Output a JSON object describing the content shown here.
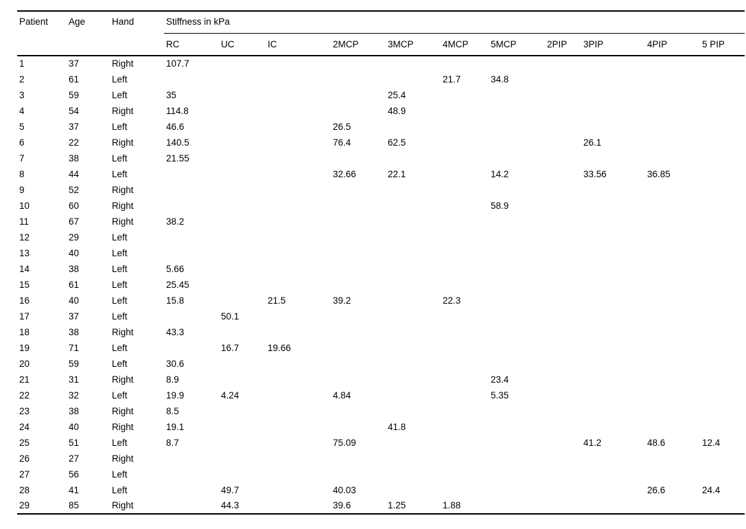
{
  "table": {
    "group_header": "Stiffness in kPa",
    "fixed_columns": [
      "Patient",
      "Age",
      "Hand"
    ],
    "subcolumns": [
      "RC",
      "UC",
      "IC",
      "2MCP",
      "3MCP",
      "4MCP",
      "5MCP",
      "2PIP",
      "3PIP",
      "4PIP",
      "5 PIP"
    ],
    "rows": [
      {
        "patient": "1",
        "age": "37",
        "hand": "Right",
        "values": [
          "107.7",
          "",
          "",
          "",
          "",
          "",
          "",
          "",
          "",
          "",
          ""
        ]
      },
      {
        "patient": "2",
        "age": "61",
        "hand": "Left",
        "values": [
          "",
          "",
          "",
          "",
          "",
          "21.7",
          "34.8",
          "",
          "",
          "",
          ""
        ]
      },
      {
        "patient": "3",
        "age": "59",
        "hand": "Left",
        "values": [
          "35",
          "",
          "",
          "",
          "25.4",
          "",
          "",
          "",
          "",
          "",
          ""
        ]
      },
      {
        "patient": "4",
        "age": "54",
        "hand": "Right",
        "values": [
          "114.8",
          "",
          "",
          "",
          "48.9",
          "",
          "",
          "",
          "",
          "",
          ""
        ]
      },
      {
        "patient": "5",
        "age": "37",
        "hand": "Left",
        "values": [
          "46.6",
          "",
          "",
          "26.5",
          "",
          "",
          "",
          "",
          "",
          "",
          ""
        ]
      },
      {
        "patient": "6",
        "age": "22",
        "hand": "Right",
        "values": [
          "140.5",
          "",
          "",
          "76.4",
          "62.5",
          "",
          "",
          "",
          "26.1",
          "",
          ""
        ]
      },
      {
        "patient": "7",
        "age": "38",
        "hand": "Left",
        "values": [
          "21.55",
          "",
          "",
          "",
          "",
          "",
          "",
          "",
          "",
          "",
          ""
        ]
      },
      {
        "patient": "8",
        "age": "44",
        "hand": "Left",
        "values": [
          "",
          "",
          "",
          "32.66",
          "22.1",
          "",
          "14.2",
          "",
          "33.56",
          "36.85",
          ""
        ]
      },
      {
        "patient": "9",
        "age": "52",
        "hand": "Right",
        "values": [
          "",
          "",
          "",
          "",
          "",
          "",
          "",
          "",
          "",
          "",
          ""
        ]
      },
      {
        "patient": "10",
        "age": "60",
        "hand": "Right",
        "values": [
          "",
          "",
          "",
          "",
          "",
          "",
          "58.9",
          "",
          "",
          "",
          ""
        ]
      },
      {
        "patient": "11",
        "age": "67",
        "hand": "Right",
        "values": [
          "38.2",
          "",
          "",
          "",
          "",
          "",
          "",
          "",
          "",
          "",
          ""
        ]
      },
      {
        "patient": "12",
        "age": "29",
        "hand": "Left",
        "values": [
          "",
          "",
          "",
          "",
          "",
          "",
          "",
          "",
          "",
          "",
          ""
        ]
      },
      {
        "patient": "13",
        "age": "40",
        "hand": "Left",
        "values": [
          "",
          "",
          "",
          "",
          "",
          "",
          "",
          "",
          "",
          "",
          ""
        ]
      },
      {
        "patient": "14",
        "age": "38",
        "hand": "Left",
        "values": [
          "5.66",
          "",
          "",
          "",
          "",
          "",
          "",
          "",
          "",
          "",
          ""
        ]
      },
      {
        "patient": "15",
        "age": "61",
        "hand": "Left",
        "values": [
          "25.45",
          "",
          "",
          "",
          "",
          "",
          "",
          "",
          "",
          "",
          ""
        ]
      },
      {
        "patient": "16",
        "age": "40",
        "hand": "Left",
        "values": [
          "15.8",
          "",
          "21.5",
          "39.2",
          "",
          "22.3",
          "",
          "",
          "",
          "",
          ""
        ]
      },
      {
        "patient": "17",
        "age": "37",
        "hand": "Left",
        "values": [
          "",
          "50.1",
          "",
          "",
          "",
          "",
          "",
          "",
          "",
          "",
          ""
        ]
      },
      {
        "patient": "18",
        "age": "38",
        "hand": "Right",
        "values": [
          "43.3",
          "",
          "",
          "",
          "",
          "",
          "",
          "",
          "",
          "",
          ""
        ]
      },
      {
        "patient": "19",
        "age": "71",
        "hand": "Left",
        "values": [
          "",
          "16.7",
          "19.66",
          "",
          "",
          "",
          "",
          "",
          "",
          "",
          ""
        ]
      },
      {
        "patient": "20",
        "age": "59",
        "hand": "Left",
        "values": [
          "30.6",
          "",
          "",
          "",
          "",
          "",
          "",
          "",
          "",
          "",
          ""
        ]
      },
      {
        "patient": "21",
        "age": "31",
        "hand": "Right",
        "values": [
          "8.9",
          "",
          "",
          "",
          "",
          "",
          "23.4",
          "",
          "",
          "",
          ""
        ]
      },
      {
        "patient": "22",
        "age": "32",
        "hand": "Left",
        "values": [
          "19.9",
          "4.24",
          "",
          "4.84",
          "",
          "",
          "5.35",
          "",
          "",
          "",
          ""
        ]
      },
      {
        "patient": "23",
        "age": "38",
        "hand": "Right",
        "values": [
          "8.5",
          "",
          "",
          "",
          "",
          "",
          "",
          "",
          "",
          "",
          ""
        ]
      },
      {
        "patient": "24",
        "age": "40",
        "hand": "Right",
        "values": [
          "19.1",
          "",
          "",
          "",
          "41.8",
          "",
          "",
          "",
          "",
          "",
          ""
        ]
      },
      {
        "patient": "25",
        "age": "51",
        "hand": "Left",
        "values": [
          "8.7",
          "",
          "",
          "75.09",
          "",
          "",
          "",
          "",
          "41.2",
          "48.6",
          "12.4"
        ]
      },
      {
        "patient": "26",
        "age": "27",
        "hand": "Right",
        "values": [
          "",
          "",
          "",
          "",
          "",
          "",
          "",
          "",
          "",
          "",
          ""
        ]
      },
      {
        "patient": "27",
        "age": "56",
        "hand": "Left",
        "values": [
          "",
          "",
          "",
          "",
          "",
          "",
          "",
          "",
          "",
          "",
          ""
        ]
      },
      {
        "patient": "28",
        "age": "41",
        "hand": "Left",
        "values": [
          "",
          "49.7",
          "",
          "40.03",
          "",
          "",
          "",
          "",
          "",
          "26.6",
          "24.4"
        ]
      },
      {
        "patient": "29",
        "age": "85",
        "hand": "Right",
        "values": [
          "",
          "44.3",
          "",
          "39.6",
          "1.25",
          "1.88",
          "",
          "",
          "",
          "",
          ""
        ]
      }
    ]
  }
}
